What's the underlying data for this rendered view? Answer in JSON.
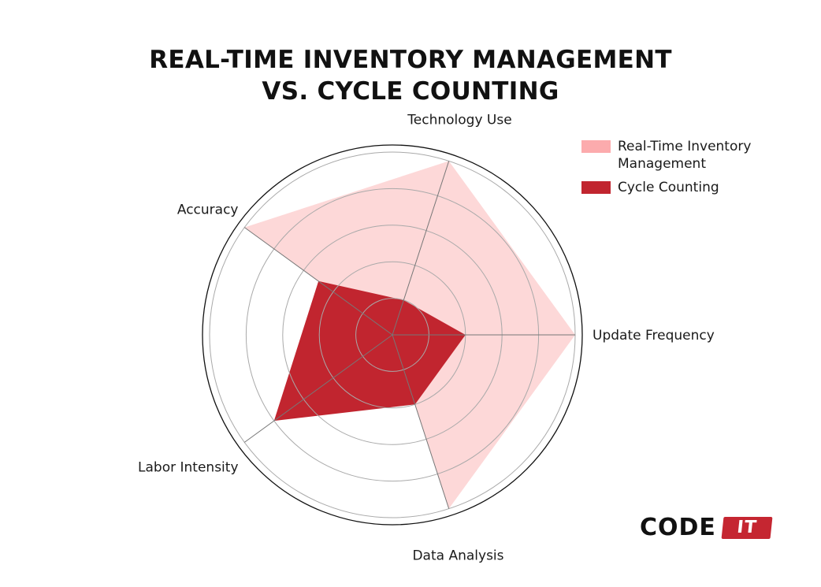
{
  "chart_data": {
    "type": "radar",
    "title": "REAL-TIME INVENTORY MANAGEMENT VS. CYCLE COUNTING",
    "title_lines": [
      "REAL-TIME INVENTORY MANAGEMENT",
      "VS. CYCLE COUNTING"
    ],
    "categories": [
      "Update Frequency",
      "Technology Use",
      "Accuracy",
      "Labor Intensity",
      "Data Analysis"
    ],
    "rlim": [
      0,
      10
    ],
    "grid_rings": 5,
    "series": [
      {
        "name": "Real-Time Inventory Management",
        "values": [
          10,
          10,
          10,
          0,
          10
        ],
        "color": "#fdd8d8",
        "legend_color": "#fcabad"
      },
      {
        "name": "Cycle Counting",
        "values": [
          4,
          2,
          5,
          8,
          4
        ],
        "color": "#c1252f",
        "legend_color": "#c1252f"
      }
    ],
    "legend": "top-right",
    "grid": true
  },
  "logo": {
    "word": "CODE",
    "badge": "IT"
  }
}
